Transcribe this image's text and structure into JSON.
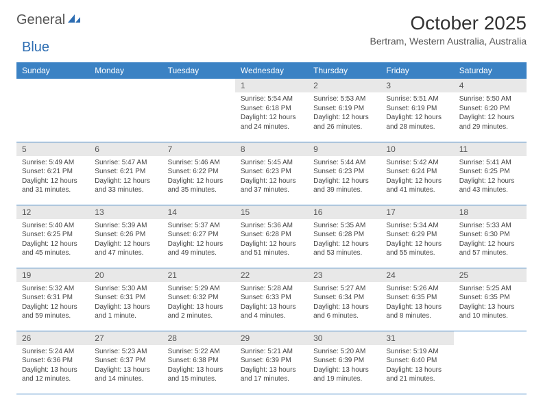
{
  "brand": {
    "text1": "General",
    "text2": "Blue",
    "text1_color": "#555555",
    "text2_color": "#2d6db2",
    "icon_color": "#2d6db2"
  },
  "title": "October 2025",
  "subtitle": "Bertram, Western Australia, Australia",
  "header_bg": "#3b82c4",
  "header_fg": "#ffffff",
  "daynum_bg": "#e8e8e8",
  "border_color": "#3b82c4",
  "days": [
    "Sunday",
    "Monday",
    "Tuesday",
    "Wednesday",
    "Thursday",
    "Friday",
    "Saturday"
  ],
  "weeks": [
    [
      null,
      null,
      null,
      {
        "n": "1",
        "sunrise": "5:54 AM",
        "sunset": "6:18 PM",
        "daylight": "12 hours and 24 minutes."
      },
      {
        "n": "2",
        "sunrise": "5:53 AM",
        "sunset": "6:19 PM",
        "daylight": "12 hours and 26 minutes."
      },
      {
        "n": "3",
        "sunrise": "5:51 AM",
        "sunset": "6:19 PM",
        "daylight": "12 hours and 28 minutes."
      },
      {
        "n": "4",
        "sunrise": "5:50 AM",
        "sunset": "6:20 PM",
        "daylight": "12 hours and 29 minutes."
      }
    ],
    [
      {
        "n": "5",
        "sunrise": "5:49 AM",
        "sunset": "6:21 PM",
        "daylight": "12 hours and 31 minutes."
      },
      {
        "n": "6",
        "sunrise": "5:47 AM",
        "sunset": "6:21 PM",
        "daylight": "12 hours and 33 minutes."
      },
      {
        "n": "7",
        "sunrise": "5:46 AM",
        "sunset": "6:22 PM",
        "daylight": "12 hours and 35 minutes."
      },
      {
        "n": "8",
        "sunrise": "5:45 AM",
        "sunset": "6:23 PM",
        "daylight": "12 hours and 37 minutes."
      },
      {
        "n": "9",
        "sunrise": "5:44 AM",
        "sunset": "6:23 PM",
        "daylight": "12 hours and 39 minutes."
      },
      {
        "n": "10",
        "sunrise": "5:42 AM",
        "sunset": "6:24 PM",
        "daylight": "12 hours and 41 minutes."
      },
      {
        "n": "11",
        "sunrise": "5:41 AM",
        "sunset": "6:25 PM",
        "daylight": "12 hours and 43 minutes."
      }
    ],
    [
      {
        "n": "12",
        "sunrise": "5:40 AM",
        "sunset": "6:25 PM",
        "daylight": "12 hours and 45 minutes."
      },
      {
        "n": "13",
        "sunrise": "5:39 AM",
        "sunset": "6:26 PM",
        "daylight": "12 hours and 47 minutes."
      },
      {
        "n": "14",
        "sunrise": "5:37 AM",
        "sunset": "6:27 PM",
        "daylight": "12 hours and 49 minutes."
      },
      {
        "n": "15",
        "sunrise": "5:36 AM",
        "sunset": "6:28 PM",
        "daylight": "12 hours and 51 minutes."
      },
      {
        "n": "16",
        "sunrise": "5:35 AM",
        "sunset": "6:28 PM",
        "daylight": "12 hours and 53 minutes."
      },
      {
        "n": "17",
        "sunrise": "5:34 AM",
        "sunset": "6:29 PM",
        "daylight": "12 hours and 55 minutes."
      },
      {
        "n": "18",
        "sunrise": "5:33 AM",
        "sunset": "6:30 PM",
        "daylight": "12 hours and 57 minutes."
      }
    ],
    [
      {
        "n": "19",
        "sunrise": "5:32 AM",
        "sunset": "6:31 PM",
        "daylight": "12 hours and 59 minutes."
      },
      {
        "n": "20",
        "sunrise": "5:30 AM",
        "sunset": "6:31 PM",
        "daylight": "13 hours and 1 minute."
      },
      {
        "n": "21",
        "sunrise": "5:29 AM",
        "sunset": "6:32 PM",
        "daylight": "13 hours and 2 minutes."
      },
      {
        "n": "22",
        "sunrise": "5:28 AM",
        "sunset": "6:33 PM",
        "daylight": "13 hours and 4 minutes."
      },
      {
        "n": "23",
        "sunrise": "5:27 AM",
        "sunset": "6:34 PM",
        "daylight": "13 hours and 6 minutes."
      },
      {
        "n": "24",
        "sunrise": "5:26 AM",
        "sunset": "6:35 PM",
        "daylight": "13 hours and 8 minutes."
      },
      {
        "n": "25",
        "sunrise": "5:25 AM",
        "sunset": "6:35 PM",
        "daylight": "13 hours and 10 minutes."
      }
    ],
    [
      {
        "n": "26",
        "sunrise": "5:24 AM",
        "sunset": "6:36 PM",
        "daylight": "13 hours and 12 minutes."
      },
      {
        "n": "27",
        "sunrise": "5:23 AM",
        "sunset": "6:37 PM",
        "daylight": "13 hours and 14 minutes."
      },
      {
        "n": "28",
        "sunrise": "5:22 AM",
        "sunset": "6:38 PM",
        "daylight": "13 hours and 15 minutes."
      },
      {
        "n": "29",
        "sunrise": "5:21 AM",
        "sunset": "6:39 PM",
        "daylight": "13 hours and 17 minutes."
      },
      {
        "n": "30",
        "sunrise": "5:20 AM",
        "sunset": "6:39 PM",
        "daylight": "13 hours and 19 minutes."
      },
      {
        "n": "31",
        "sunrise": "5:19 AM",
        "sunset": "6:40 PM",
        "daylight": "13 hours and 21 minutes."
      },
      null
    ]
  ],
  "labels": {
    "sunrise": "Sunrise:",
    "sunset": "Sunset:",
    "daylight": "Daylight:"
  }
}
